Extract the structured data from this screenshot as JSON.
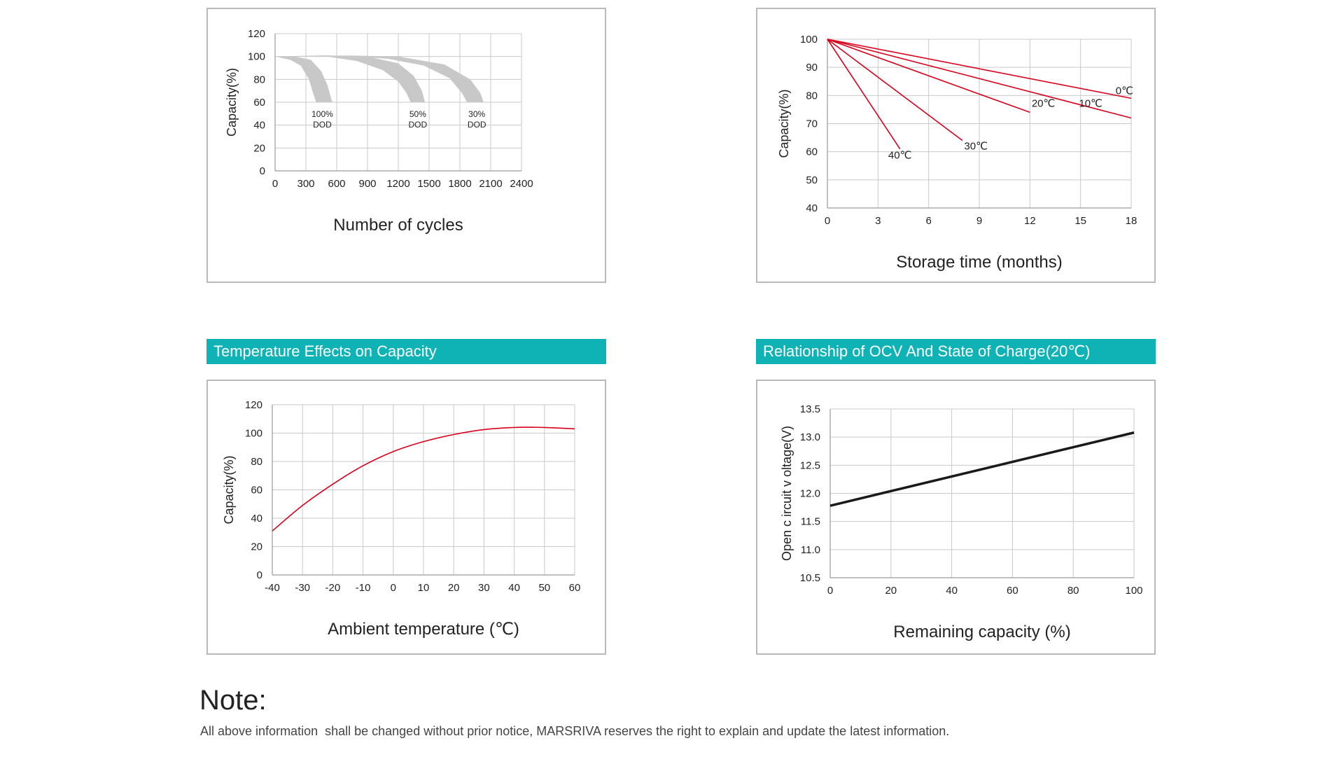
{
  "headings": {
    "temperature": "Temperature Effects on Capacity",
    "ocv": "Relationship of OCV And State of Charge(20℃)"
  },
  "note": {
    "title": "Note:",
    "text": "All above information  shall be changed without prior notice, MARSRIVA reserves the right to explain and update the latest information."
  },
  "colors": {
    "heading_bg": "#0fb3b6",
    "red_curve": "#d9001b",
    "gray_band": "#c8c8c8",
    "black_line": "#1a1a1a"
  },
  "chart_data": [
    {
      "id": "cycles",
      "type": "area",
      "title": "",
      "xlabel": "Number of cycles",
      "ylabel": "Capacity(%)",
      "xlim": [
        0,
        2400
      ],
      "ylim": [
        0,
        120
      ],
      "xticks": [
        0,
        300,
        600,
        900,
        1200,
        1500,
        1800,
        2100,
        2400
      ],
      "yticks": [
        0,
        20,
        40,
        60,
        80,
        100,
        120
      ],
      "grid": true,
      "series": [
        {
          "name": "100% DOD",
          "label_lines": [
            "100%",
            "DOD"
          ],
          "label_at": [
            460,
            47
          ],
          "upper": [
            [
              0,
              100
            ],
            [
              200,
              100
            ],
            [
              350,
              97
            ],
            [
              450,
              87
            ],
            [
              510,
              75
            ],
            [
              550,
              62
            ],
            [
              560,
              60
            ]
          ],
          "lower": [
            [
              0,
              100
            ],
            [
              150,
              97
            ],
            [
              250,
              92
            ],
            [
              330,
              80
            ],
            [
              370,
              68
            ],
            [
              400,
              60
            ]
          ]
        },
        {
          "name": "50% DOD",
          "label_lines": [
            "50%",
            "DOD"
          ],
          "label_at": [
            1390,
            47
          ],
          "upper": [
            [
              0,
              100
            ],
            [
              500,
              101
            ],
            [
              900,
              100
            ],
            [
              1200,
              94
            ],
            [
              1350,
              83
            ],
            [
              1430,
              70
            ],
            [
              1460,
              60
            ]
          ],
          "lower": [
            [
              0,
              100
            ],
            [
              500,
              100
            ],
            [
              800,
              96
            ],
            [
              1050,
              88
            ],
            [
              1200,
              78
            ],
            [
              1280,
              68
            ],
            [
              1320,
              60
            ]
          ]
        },
        {
          "name": "30% DOD",
          "label_lines": [
            "30%",
            "DOD"
          ],
          "label_at": [
            1965,
            47
          ],
          "upper": [
            [
              0,
              100
            ],
            [
              600,
              101
            ],
            [
              1200,
              100
            ],
            [
              1650,
              93
            ],
            [
              1900,
              80
            ],
            [
              2000,
              68
            ],
            [
              2030,
              60
            ]
          ],
          "lower": [
            [
              0,
              100
            ],
            [
              600,
              101
            ],
            [
              1100,
              98
            ],
            [
              1450,
              92
            ],
            [
              1700,
              81
            ],
            [
              1820,
              68
            ],
            [
              1870,
              60
            ]
          ]
        }
      ]
    },
    {
      "id": "storage",
      "type": "line",
      "title": "",
      "xlabel": "Storage time (months)",
      "ylabel": "Capacity(%)",
      "xlim": [
        0,
        18
      ],
      "ylim": [
        40,
        100
      ],
      "xticks": [
        0,
        3,
        6,
        9,
        12,
        15,
        18
      ],
      "yticks": [
        40,
        50,
        60,
        70,
        80,
        90,
        100
      ],
      "grid": true,
      "series": [
        {
          "name": "0℃",
          "points": [
            [
              0,
              100
            ],
            [
              18,
              79
            ]
          ],
          "label_at": [
            17.6,
            80.5
          ]
        },
        {
          "name": "10℃",
          "points": [
            [
              0,
              100
            ],
            [
              18,
              72
            ]
          ],
          "label_at": [
            15.6,
            76
          ]
        },
        {
          "name": "20℃",
          "points": [
            [
              0,
              100
            ],
            [
              12,
              74
            ]
          ],
          "label_at": [
            12.8,
            76
          ]
        },
        {
          "name": "30℃",
          "points": [
            [
              0,
              100
            ],
            [
              8,
              64
            ]
          ],
          "label_at": [
            8.8,
            60.8
          ]
        },
        {
          "name": "40℃",
          "points": [
            [
              0,
              100
            ],
            [
              4.3,
              61
            ]
          ],
          "label_at": [
            4.3,
            57.5
          ]
        }
      ]
    },
    {
      "id": "temperature",
      "type": "line",
      "title": "",
      "xlabel": "Ambient temperature (℃)",
      "ylabel": "Capacity(%)",
      "xlim": [
        -40,
        60
      ],
      "ylim": [
        0,
        120
      ],
      "xticks": [
        -40,
        -30,
        -20,
        -10,
        0,
        10,
        20,
        30,
        40,
        50,
        60
      ],
      "yticks": [
        0,
        20,
        40,
        60,
        80,
        100,
        120
      ],
      "grid": true,
      "series": [
        {
          "name": "Capacity",
          "points": [
            [
              -40,
              31
            ],
            [
              -30,
              49
            ],
            [
              -20,
              64
            ],
            [
              -10,
              77
            ],
            [
              0,
              87
            ],
            [
              10,
              94
            ],
            [
              20,
              99
            ],
            [
              30,
              102.5
            ],
            [
              40,
              104
            ],
            [
              50,
              104
            ],
            [
              60,
              103
            ]
          ]
        }
      ]
    },
    {
      "id": "ocv",
      "type": "line",
      "title": "",
      "xlabel": "Remaining capacity (%)",
      "ylabel": "Open c ircuit v oltage(V)",
      "xlim": [
        0,
        100
      ],
      "ylim": [
        10.5,
        13.5
      ],
      "xticks": [
        0,
        20,
        40,
        60,
        80,
        100
      ],
      "yticks": [
        10.5,
        11.0,
        11.5,
        12.0,
        12.5,
        13.0,
        13.5
      ],
      "ytick_format": "1dp",
      "grid": true,
      "series": [
        {
          "name": "OCV",
          "points": [
            [
              0,
              11.78
            ],
            [
              100,
              13.08
            ]
          ]
        }
      ]
    }
  ]
}
